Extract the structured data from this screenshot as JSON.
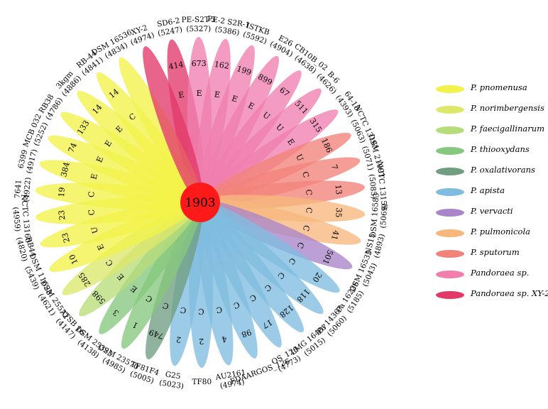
{
  "center": {
    "value": "1903",
    "color": "#ff1a1a"
  },
  "petals": [
    {
      "strain": "SD6-2",
      "id": "(5247)",
      "count": "414",
      "letter": "E",
      "species": 10
    },
    {
      "strain": "PE-S2T-3",
      "id": "(5327)",
      "count": "673",
      "letter": "E",
      "species": 9
    },
    {
      "strain": "PE-2 S2R-1",
      "id": "(5386)",
      "count": "162",
      "letter": "E",
      "species": 9
    },
    {
      "strain": "ISTKB",
      "id": "(5592)",
      "count": "199",
      "letter": "E",
      "species": 9
    },
    {
      "strain": "E26",
      "id": "(4904)",
      "count": "899",
      "letter": "E",
      "species": 9
    },
    {
      "strain": "CB10B_02",
      "id": "(4638)",
      "count": "67",
      "letter": "U",
      "species": 9
    },
    {
      "strain": "B-6",
      "id": "(4626)",
      "count": "511",
      "letter": "U",
      "species": 9
    },
    {
      "strain": "64-18",
      "id": "(4393)",
      "count": "315",
      "letter": "E",
      "species": 9
    },
    {
      "strain": "NCTC 13161",
      "id": "(5063)",
      "count": "186",
      "letter": "U",
      "species": 8
    },
    {
      "strain": "DSM 21091",
      "id": "(5071)",
      "count": "7",
      "letter": "C",
      "species": 8
    },
    {
      "strain": "NCTC 13159",
      "id": "(5085)",
      "count": "13",
      "letter": "C",
      "species": 8
    },
    {
      "strain": "DSM 16583",
      "id": "(5069)",
      "count": "35",
      "letter": "C",
      "species": 7
    },
    {
      "strain": "NS15",
      "id": "(4893)",
      "count": "41",
      "letter": "C",
      "species": 7
    },
    {
      "strain": "DSM 16535",
      "id": "(5043)",
      "count": "501",
      "letter": "C",
      "species": 6
    },
    {
      "strain": "Pa 16226",
      "id": "(5185)",
      "count": "20",
      "letter": "C",
      "species": 5
    },
    {
      "strain": "Pa 14367",
      "id": "(5060)",
      "count": "118",
      "letter": "C",
      "species": 5
    },
    {
      "strain": "LMG 16407",
      "id": "(5015)",
      "count": "128",
      "letter": "C",
      "species": 5
    },
    {
      "strain": "OS_126",
      "id": "(4773)",
      "count": "17",
      "letter": "C",
      "species": 5
    },
    {
      "strain": "FDAARGOS_126",
      "id": "",
      "count": "98",
      "letter": "C",
      "species": 5
    },
    {
      "strain": "AU2161",
      "id": "(4974)",
      "count": "4",
      "letter": "C",
      "species": 5
    },
    {
      "strain": "TF80",
      "id": "",
      "count": "2",
      "letter": "C",
      "species": 5
    },
    {
      "strain": "G25",
      "id": "(5023)",
      "count": "2",
      "letter": "C",
      "species": 5
    },
    {
      "strain": "TF81F4",
      "id": "(5005)",
      "count": "749",
      "letter": "C",
      "species": 4
    },
    {
      "strain": "DSM 23570",
      "id": "(4985)",
      "count": "1",
      "letter": "C",
      "species": 3
    },
    {
      "strain": "DSM 25325",
      "id": "(4138)",
      "count": "3",
      "letter": "E",
      "species": 3
    },
    {
      "strain": "ATSB 16",
      "id": "(4147)",
      "count": "598",
      "letter": "E",
      "species": 2
    },
    {
      "strain": "DSM 25572",
      "id": "(4621)",
      "count": "285",
      "letter": "C",
      "species": 1
    },
    {
      "strain": "DSM 11628",
      "id": "(5439)",
      "count": "10",
      "letter": "E",
      "species": 0
    },
    {
      "strain": "RB44",
      "id": "(4820)",
      "count": "23",
      "letter": "U",
      "species": 0
    },
    {
      "strain": "NCTC 13160",
      "id": "(4959)",
      "count": "23",
      "letter": "C",
      "species": 0
    },
    {
      "strain": "7641",
      "id": "(4922)",
      "count": "19",
      "letter": "C",
      "species": 0
    },
    {
      "strain": "6399",
      "id": "(4917)",
      "count": "384",
      "letter": "E",
      "species": 0
    },
    {
      "strain": "MCB 032",
      "id": "(5252)",
      "count": "74",
      "letter": "E",
      "species": 0
    },
    {
      "strain": "RB38",
      "id": "(4786)",
      "count": "133",
      "letter": "E",
      "species": 0
    },
    {
      "strain": "3kgm",
      "id": "(4886)",
      "count": "14",
      "letter": "E",
      "species": 0
    },
    {
      "strain": "RB-44",
      "id": "(4841)",
      "count": "14",
      "letter": "C",
      "species": 0
    },
    {
      "strain": "DSM 16536",
      "id": "(4834)",
      "count": "",
      "letter": "",
      "species": 0
    },
    {
      "strain": "XY-2",
      "id": "(4974)",
      "count": "",
      "letter": "",
      "species": 10
    }
  ],
  "legend": [
    {
      "label": "P. pnomenusa",
      "color": "#f2f24a"
    },
    {
      "label": "P. norimbergensis",
      "color": "#dde86a"
    },
    {
      "label": "P. faecigallinarum",
      "color": "#b7dd7a"
    },
    {
      "label": "P. thiooxydans",
      "color": "#86c87e"
    },
    {
      "label": "P. oxalativorans",
      "color": "#6f9e80"
    },
    {
      "label": "P. apista",
      "color": "#7fbcdf"
    },
    {
      "label": "P. vervacti",
      "color": "#a985c9"
    },
    {
      "label": "P. pulmonicola",
      "color": "#f7b77c"
    },
    {
      "label": "P. sputorum",
      "color": "#f2837a"
    },
    {
      "label": "Pandoraea sp.",
      "color": "#f07fae"
    },
    {
      "label": "Pandoraea sp. XY-2",
      "color": "#e3386a"
    }
  ]
}
